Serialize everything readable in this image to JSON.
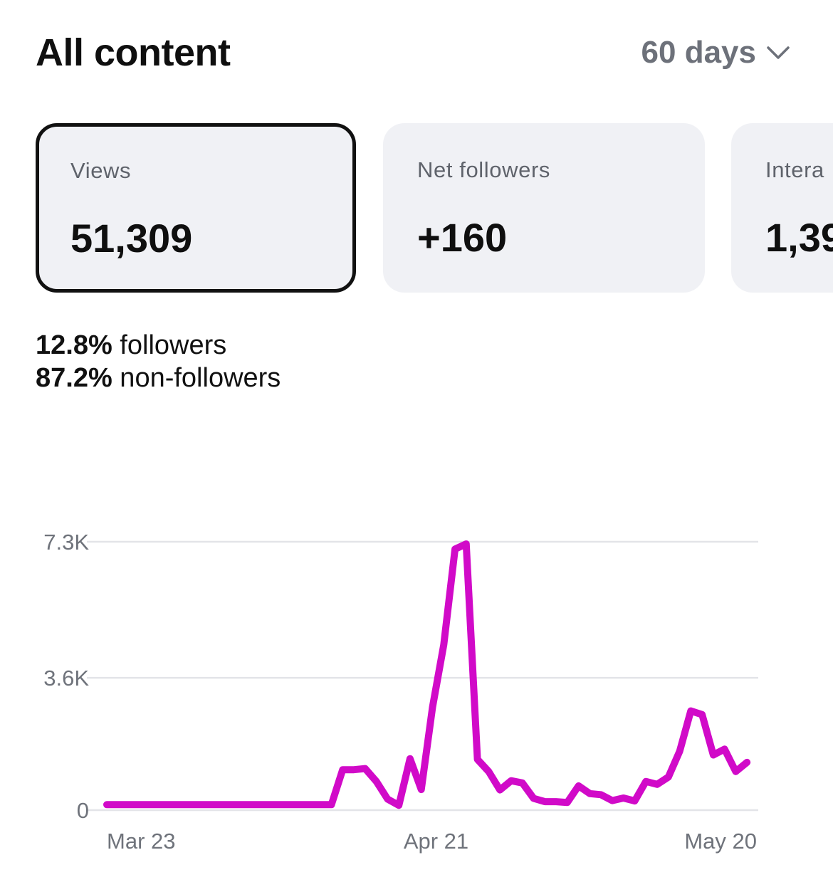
{
  "header": {
    "title": "All content",
    "range_label": "60 days"
  },
  "cards": [
    {
      "label": "Views",
      "value": "51,309",
      "selected": true
    },
    {
      "label": "Net followers",
      "value": "+160",
      "selected": false
    },
    {
      "label": "Intera",
      "value": "1,39",
      "selected": false
    }
  ],
  "breakdown": {
    "followers_pct": "12.8%",
    "followers_label": " followers",
    "nonfollowers_pct": "87.2%",
    "nonfollowers_label": " non-followers"
  },
  "colors": {
    "line": "#d10ac8",
    "grid": "#e3e4e8",
    "card_bg": "#f0f1f5",
    "muted_text": "#6f737b"
  },
  "chart_data": {
    "type": "line",
    "title": "",
    "xlabel": "",
    "ylabel": "",
    "y_ticks": [
      {
        "value": 0,
        "label": "0"
      },
      {
        "value": 3600,
        "label": "3.6K"
      },
      {
        "value": 7300,
        "label": "7.3K"
      }
    ],
    "x_ticks": [
      {
        "value": 0,
        "label": "Mar 23"
      },
      {
        "value": 29,
        "label": "Apr 21"
      },
      {
        "value": 58,
        "label": "May 20"
      }
    ],
    "ylim": [
      0,
      7300
    ],
    "xlim": [
      0,
      58
    ],
    "grid": true,
    "series": [
      {
        "values": [
          150,
          150,
          150,
          150,
          150,
          150,
          150,
          150,
          150,
          150,
          150,
          150,
          150,
          150,
          150,
          150,
          150,
          150,
          150,
          150,
          150,
          1100,
          1100,
          1130,
          780,
          300,
          130,
          1400,
          560,
          2800,
          4500,
          7100,
          7240,
          1380,
          1050,
          550,
          800,
          740,
          320,
          230,
          230,
          210,
          660,
          450,
          420,
          260,
          330,
          250,
          780,
          700,
          900,
          1600,
          2700,
          2600,
          1500,
          1660,
          1050,
          1300
        ]
      }
    ]
  }
}
